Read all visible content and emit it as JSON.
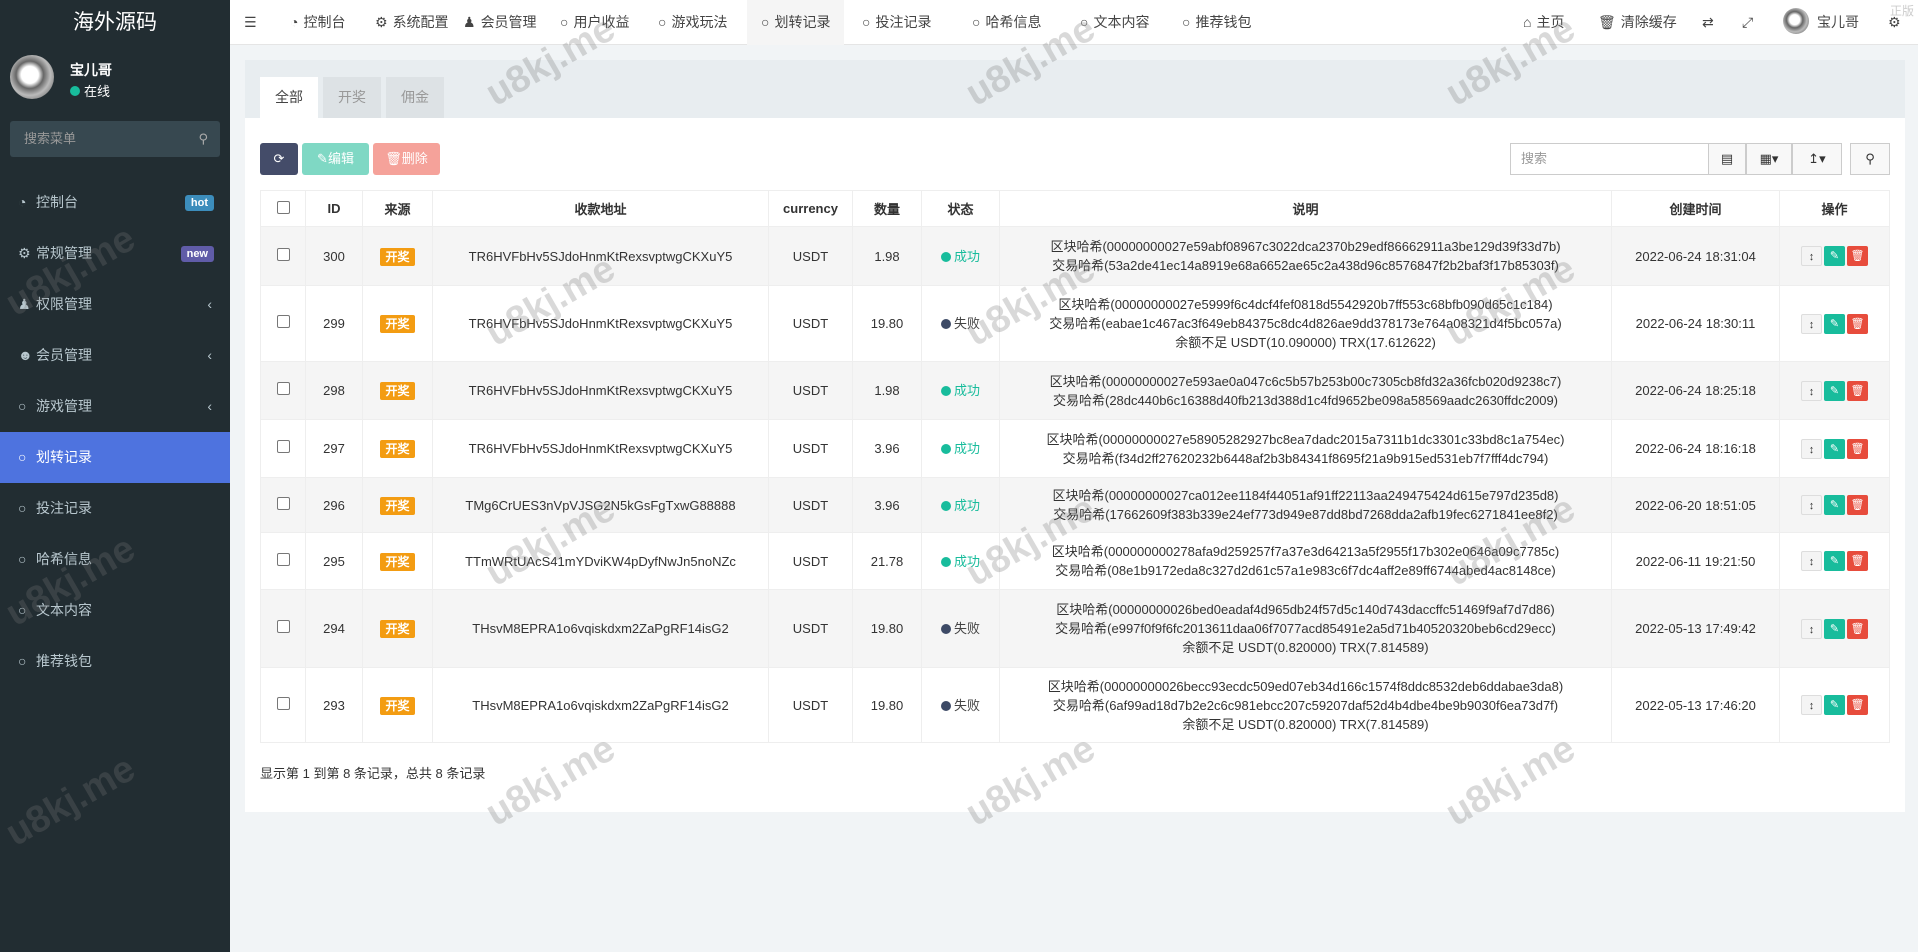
{
  "sidebar": {
    "logo": "海外源码",
    "user": "宝儿哥",
    "status": "在线",
    "search_placeholder": "搜索菜单",
    "items": [
      {
        "label": "控制台",
        "icon": "dashboard-icon",
        "badge": "hot",
        "badge_color": "#3c8dbc"
      },
      {
        "label": "常规管理",
        "icon": "cogs-icon",
        "badge": "new",
        "badge_color": "#605ca8"
      },
      {
        "label": "权限管理",
        "icon": "group-icon",
        "chevron": true
      },
      {
        "label": "会员管理",
        "icon": "user-circle-icon",
        "chevron": true
      },
      {
        "label": "游戏管理",
        "icon": "circle-icon",
        "chevron": true
      },
      {
        "label": "划转记录",
        "icon": "circle-icon",
        "active": true
      },
      {
        "label": "投注记录",
        "icon": "circle-icon"
      },
      {
        "label": "哈希信息",
        "icon": "circle-icon"
      },
      {
        "label": "文本内容",
        "icon": "circle-icon"
      },
      {
        "label": "推荐钱包",
        "icon": "circle-icon"
      }
    ]
  },
  "topnav": {
    "items": [
      "控制台",
      "系统配置",
      "会员管理",
      "用户收益",
      "游戏玩法",
      "划转记录",
      "投注记录",
      "哈希信息",
      "文本内容",
      "推荐钱包"
    ],
    "home": "主页",
    "clear_cache": "清除缓存",
    "user": "宝儿哥",
    "corner": "正版"
  },
  "tabs": [
    "全部",
    "开奖",
    "佣金"
  ],
  "toolbar": {
    "edit": "编辑",
    "delete": "删除",
    "search_placeholder": "搜索"
  },
  "table": {
    "headers": [
      "ID",
      "来源",
      "收款地址",
      "currency",
      "数量",
      "状态",
      "说明",
      "创建时间",
      "操作"
    ],
    "rows": [
      {
        "id": "300",
        "source": "开奖",
        "address": "TR6HVFbHv5SJdoHnmKtRexsvptwgCKXuY5",
        "currency": "USDT",
        "amount": "1.98",
        "status": "成功",
        "ok": true,
        "desc": [
          "区块哈希(00000000027e59abf08967c3022dca2370b29edf86662911a3be129d39f33d7b)",
          "交易哈希(53a2de41ec14a8919e68a6652ae65c2a438d96c8576847f2b2baf3f17b85303f)"
        ],
        "time": "2022-06-24 18:31:04"
      },
      {
        "id": "299",
        "source": "开奖",
        "address": "TR6HVFbHv5SJdoHnmKtRexsvptwgCKXuY5",
        "currency": "USDT",
        "amount": "19.80",
        "status": "失败",
        "ok": false,
        "desc": [
          "区块哈希(00000000027e5999f6c4dcf4fef0818d5542920b7ff553c68bfb090d65c1c184)",
          "交易哈希(eabae1c467ac3f649eb84375c8dc4d826ae9dd378173e764a08321d4f5bc057a)",
          "余额不足 USDT(10.090000) TRX(17.612622)"
        ],
        "time": "2022-06-24 18:30:11"
      },
      {
        "id": "298",
        "source": "开奖",
        "address": "TR6HVFbHv5SJdoHnmKtRexsvptwgCKXuY5",
        "currency": "USDT",
        "amount": "1.98",
        "status": "成功",
        "ok": true,
        "desc": [
          "区块哈希(00000000027e593ae0a047c6c5b57b253b00c7305cb8fd32a36fcb020d9238c7)",
          "交易哈希(28dc440b6c16388d40fb213d388d1c4fd9652be098a58569aadc2630ffdc2009)"
        ],
        "time": "2022-06-24 18:25:18"
      },
      {
        "id": "297",
        "source": "开奖",
        "address": "TR6HVFbHv5SJdoHnmKtRexsvptwgCKXuY5",
        "currency": "USDT",
        "amount": "3.96",
        "status": "成功",
        "ok": true,
        "desc": [
          "区块哈希(00000000027e58905282927bc8ea7dadc2015a7311b1dc3301c33bd8c1a754ec)",
          "交易哈希(f34d2ff27620232b6448af2b3b84341f8695f21a9b915ed531eb7f7fff4dc794)"
        ],
        "time": "2022-06-24 18:16:18"
      },
      {
        "id": "296",
        "source": "开奖",
        "address": "TMg6CrUES3nVpVJSG2N5kGsFgTxwG88888",
        "currency": "USDT",
        "amount": "3.96",
        "status": "成功",
        "ok": true,
        "desc": [
          "区块哈希(00000000027ca012ee1184f44051af91ff22113aa249475424d615e797d235d8)",
          "交易哈希(17662609f383b339e24ef773d949e87dd8bd7268dda2afb19fec6271841ee8f2)"
        ],
        "time": "2022-06-20 18:51:05"
      },
      {
        "id": "295",
        "source": "开奖",
        "address": "TTmWRtUAcS41mYDviKW4pDyfNwJn5noNZc",
        "currency": "USDT",
        "amount": "21.78",
        "status": "成功",
        "ok": true,
        "desc": [
          "区块哈希(000000000278afa9d259257f7a37e3d64213a5f2955f17b302e0646a09c7785c)",
          "交易哈希(08e1b9172eda8c327d2d61c57a1e983c6f7dc4aff2e89ff6744abed4ac8148ce)"
        ],
        "time": "2022-06-11 19:21:50"
      },
      {
        "id": "294",
        "source": "开奖",
        "address": "THsvM8EPRA1o6vqiskdxm2ZaPgRF14isG2",
        "currency": "USDT",
        "amount": "19.80",
        "status": "失败",
        "ok": false,
        "desc": [
          "区块哈希(00000000026bed0eadaf4d965db24f57d5c140d743daccffc51469f9af7d7d86)",
          "交易哈希(e997f0f9f6fc2013611daa06f7077acd85491e2a5d71b40520320beb6cd29ecc)",
          "余额不足 USDT(0.820000) TRX(7.814589)"
        ],
        "time": "2022-05-13 17:49:42"
      },
      {
        "id": "293",
        "source": "开奖",
        "address": "THsvM8EPRA1o6vqiskdxm2ZaPgRF14isG2",
        "currency": "USDT",
        "amount": "19.80",
        "status": "失败",
        "ok": false,
        "desc": [
          "区块哈希(00000000026becc93ecdc509ed07eb34d166c1574f8ddc8532deb6ddabae3da8)",
          "交易哈希(6af99ad18d7b2e2c6c981ebcc207c59207daf52d4b4dbe4be9b9030f6ea73d7f)",
          "余额不足 USDT(0.820000) TRX(7.814589)"
        ],
        "time": "2022-05-13 17:46:20"
      }
    ]
  },
  "footer": "显示第 1 到第 8 条记录，总共 8 条记录",
  "watermark": "u8kj.me",
  "colors": {
    "success": "#18bc9c",
    "fail": "#3d4a66",
    "active_menu": "#4e73df",
    "tag": "#f39c12"
  }
}
